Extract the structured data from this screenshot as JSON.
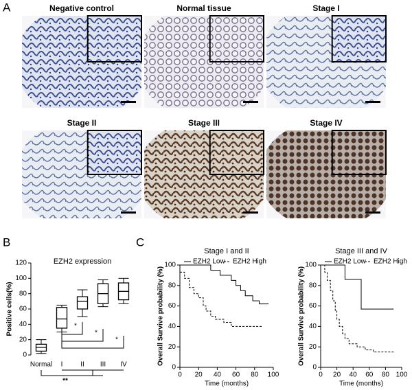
{
  "panel_labels": [
    "A",
    "B",
    "C"
  ],
  "images": [
    {
      "title": "Negative control"
    },
    {
      "title": "Normal tissue"
    },
    {
      "title": "Stage I"
    },
    {
      "title": "Stage II"
    },
    {
      "title": "Stage III"
    },
    {
      "title": "Stage IV"
    }
  ],
  "chart_data": [
    {
      "type": "box",
      "title": "EZH2 expression",
      "ylabel": "Positive cells(%)",
      "categories": [
        "Normal",
        "I",
        "II",
        "III",
        "IV"
      ],
      "min": [
        2,
        30,
        50,
        63,
        67
      ],
      "q1": [
        5,
        35,
        60,
        67,
        72
      ],
      "median": [
        10,
        47,
        70,
        80,
        83
      ],
      "q3": [
        14,
        62,
        76,
        93,
        94
      ],
      "max": [
        20,
        65,
        85,
        98,
        100
      ],
      "ylim": [
        0,
        120
      ],
      "yticks": [
        0,
        20,
        40,
        60,
        80,
        100,
        120
      ],
      "annotations": [
        "*",
        "*",
        "*",
        "**"
      ]
    },
    {
      "type": "line",
      "title": "Stage I and II",
      "xlabel": "Time (months)",
      "ylabel": "Overall Survive probability (%)",
      "xlim": [
        0,
        100
      ],
      "ylim": [
        0,
        100
      ],
      "xticks": [
        0,
        20,
        40,
        60,
        80,
        100
      ],
      "yticks": [
        0,
        20,
        40,
        60,
        80,
        100
      ],
      "legend": "top",
      "series": [
        {
          "name": "EZH2 Low",
          "color": "#000000",
          "line_style": "solid",
          "x": [
            0,
            33,
            33,
            43,
            43,
            55,
            55,
            60,
            60,
            65,
            65,
            70,
            70,
            78,
            78,
            85,
            85,
            95
          ],
          "values": [
            100,
            100,
            95,
            95,
            90,
            90,
            85,
            85,
            80,
            80,
            75,
            75,
            70,
            70,
            65,
            65,
            62,
            62
          ]
        },
        {
          "name": "EZH2 High",
          "color": "#000000",
          "line_style": "dashed",
          "x": [
            0,
            5,
            5,
            10,
            10,
            15,
            15,
            20,
            20,
            25,
            25,
            28,
            28,
            33,
            33,
            38,
            38,
            47,
            47,
            55,
            55,
            88
          ],
          "values": [
            93,
            93,
            87,
            87,
            78,
            78,
            72,
            72,
            68,
            68,
            60,
            60,
            55,
            55,
            50,
            50,
            47,
            47,
            44,
            44,
            40,
            40
          ]
        }
      ]
    },
    {
      "type": "line",
      "title": "Stage III and IV",
      "xlabel": "Time (months)",
      "ylabel": "Overall Survive probability (%)",
      "xlim": [
        0,
        100
      ],
      "ylim": [
        0,
        100
      ],
      "xticks": [
        0,
        20,
        40,
        60,
        80,
        100
      ],
      "yticks": [
        0,
        20,
        40,
        60,
        80,
        100
      ],
      "legend": "top",
      "series": [
        {
          "name": "EZH2 Low",
          "color": "#000000",
          "line_style": "solid",
          "x": [
            0,
            30,
            30,
            50,
            50,
            90
          ],
          "values": [
            100,
            100,
            86,
            86,
            57,
            57
          ]
        },
        {
          "name": "EZH2 High",
          "color": "#000000",
          "line_style": "dashed",
          "x": [
            0,
            5,
            5,
            8,
            8,
            12,
            12,
            15,
            15,
            18,
            18,
            20,
            20,
            23,
            23,
            27,
            27,
            30,
            30,
            35,
            35,
            45,
            45,
            55,
            55,
            65,
            65,
            90
          ],
          "values": [
            100,
            100,
            93,
            93,
            85,
            85,
            75,
            75,
            65,
            65,
            55,
            55,
            47,
            47,
            40,
            40,
            33,
            33,
            28,
            28,
            23,
            23,
            20,
            20,
            17,
            17,
            15,
            15
          ]
        }
      ]
    }
  ]
}
